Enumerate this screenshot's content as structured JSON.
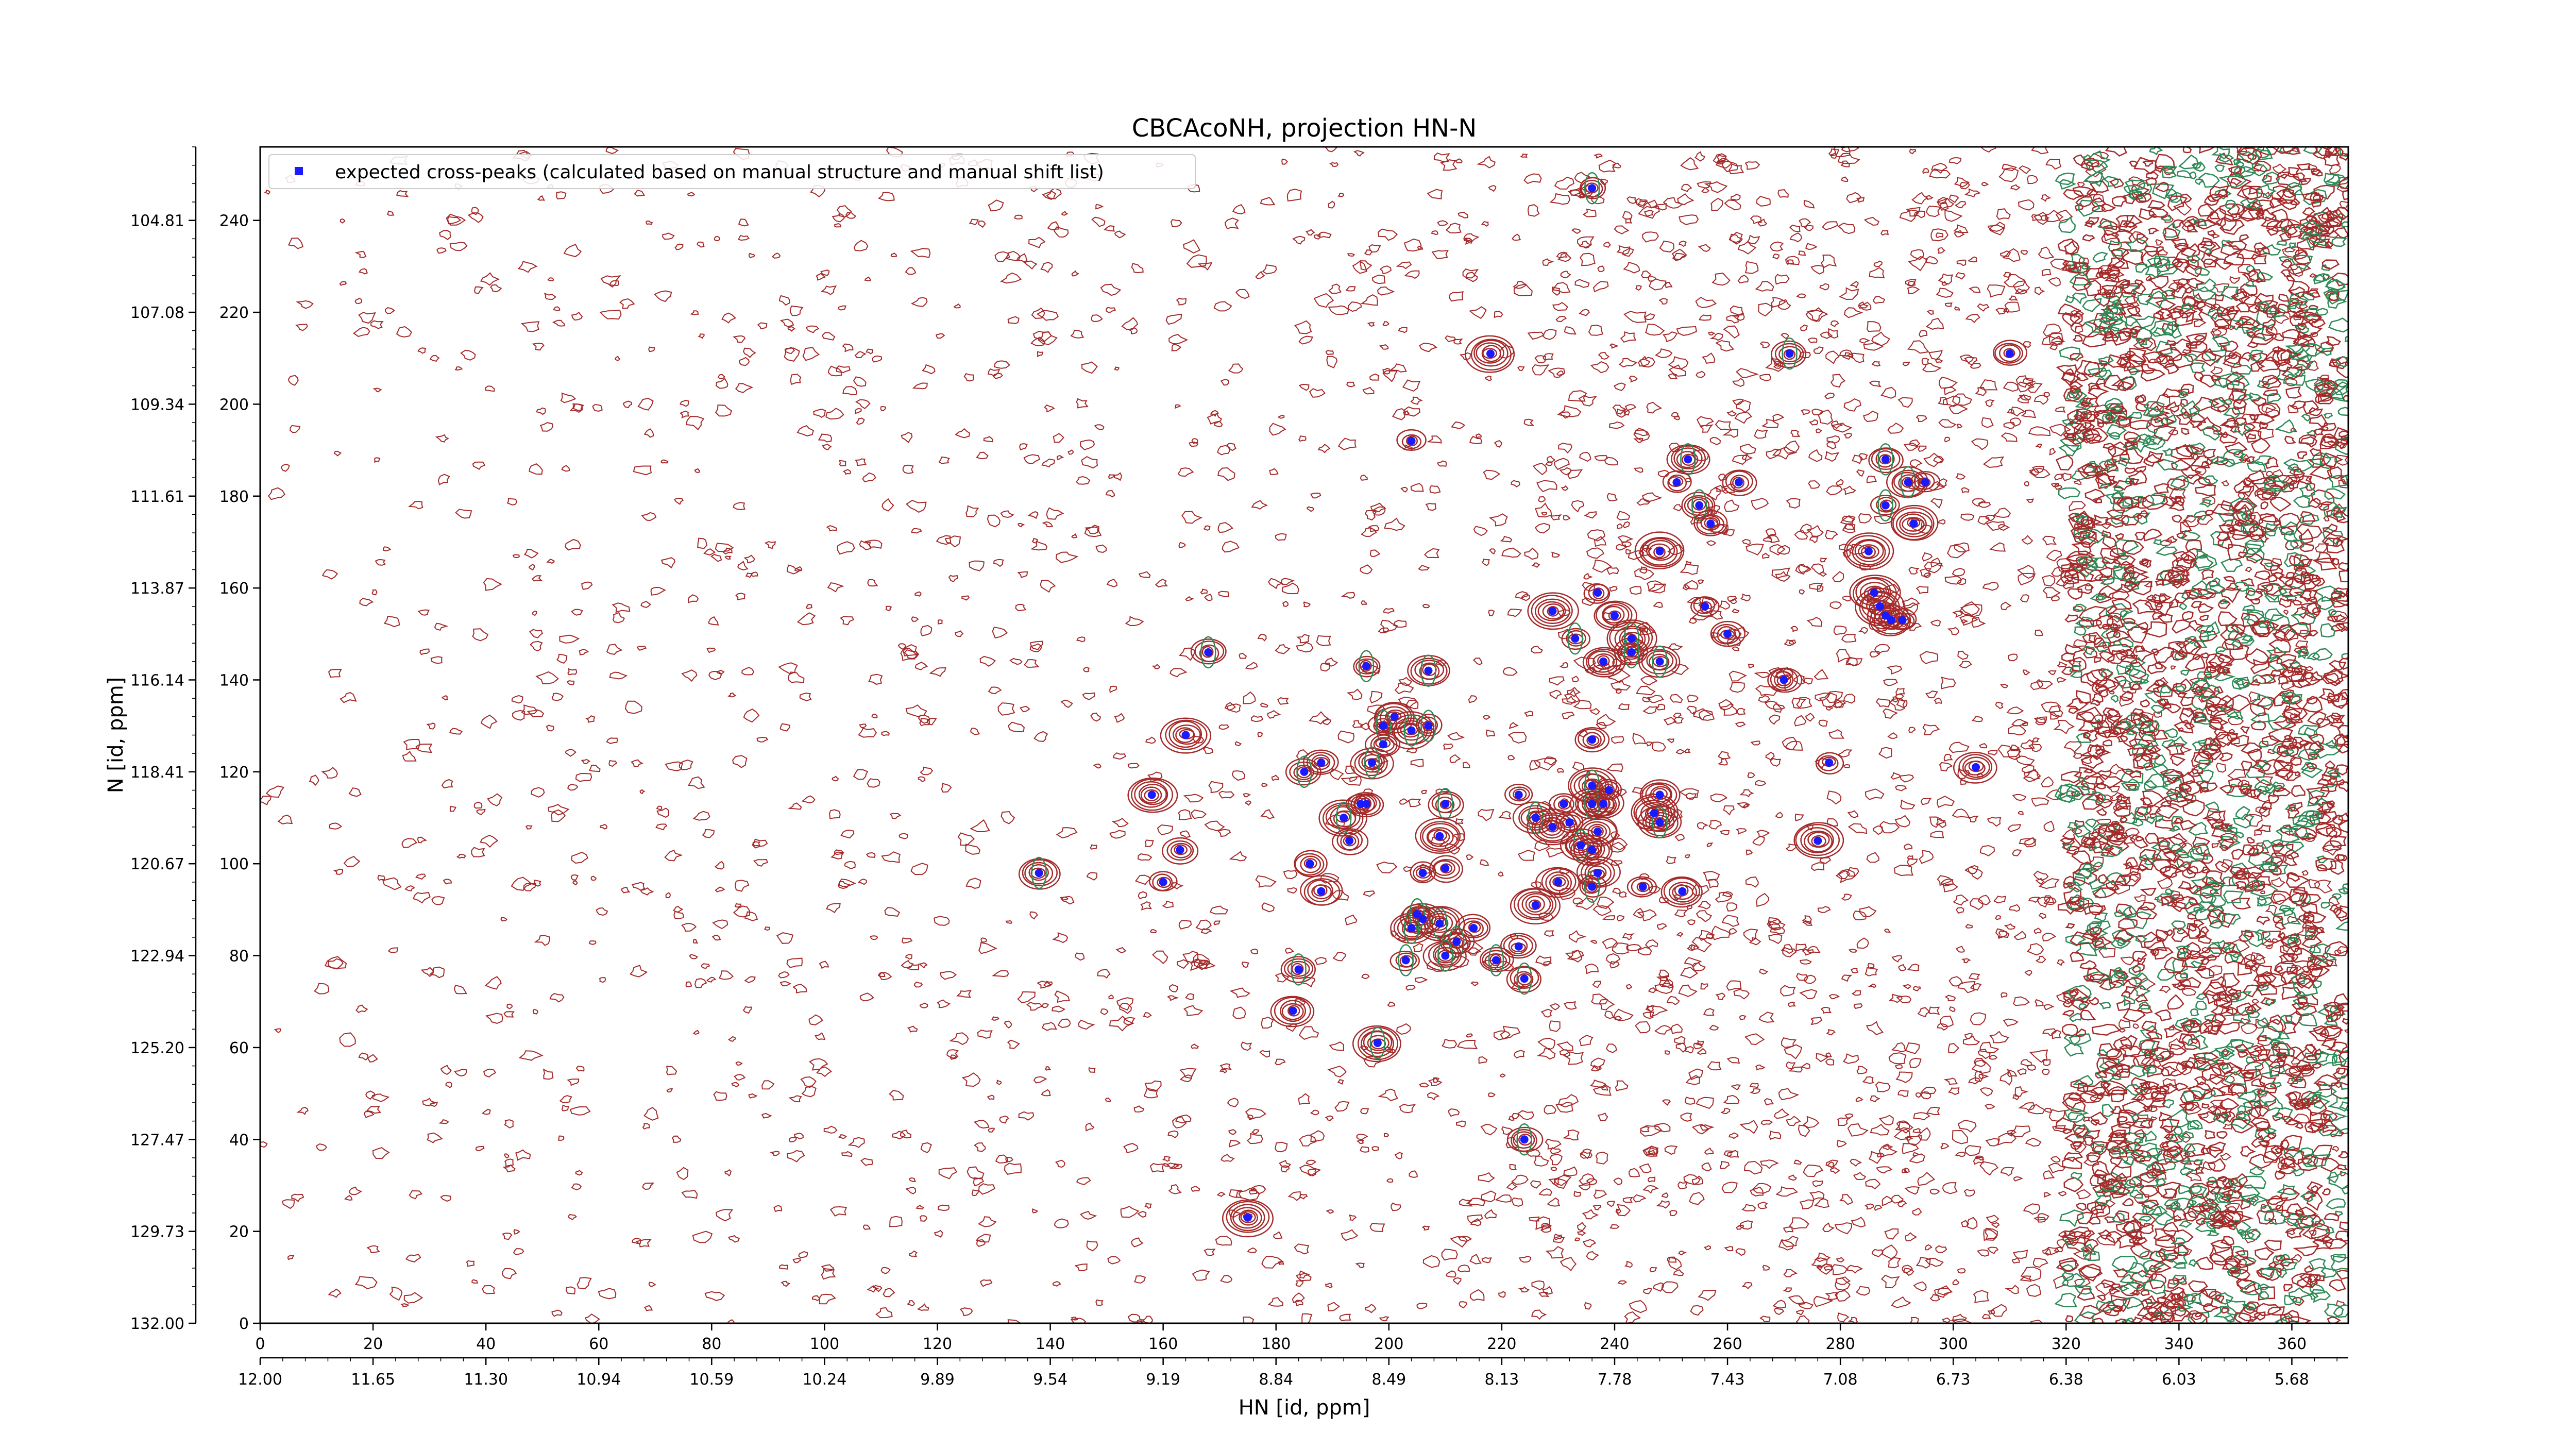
{
  "chart_data": {
    "type": "scatter",
    "title": "CBCAcoNH, projection HN-N",
    "xlabel": "HN [id, ppm]",
    "ylabel": "N [id, ppm]",
    "xlim": [
      0,
      370
    ],
    "ylim": [
      0,
      256
    ],
    "x_ticks": [
      0,
      20,
      40,
      60,
      80,
      100,
      120,
      140,
      160,
      180,
      200,
      220,
      240,
      260,
      280,
      300,
      320,
      340,
      360
    ],
    "y_ticks": [
      0,
      20,
      40,
      60,
      80,
      100,
      120,
      140,
      160,
      180,
      200,
      220,
      240
    ],
    "x_ppm_ticks": [
      "12.00",
      "11.65",
      "11.30",
      "10.94",
      "10.59",
      "10.24",
      "9.89",
      "9.54",
      "9.19",
      "8.84",
      "8.49",
      "8.13",
      "7.78",
      "7.43",
      "7.08",
      "6.73",
      "6.38",
      "6.03",
      "5.68"
    ],
    "y_ppm_ticks": [
      "132.00",
      "129.73",
      "127.47",
      "125.20",
      "122.94",
      "120.67",
      "118.41",
      "116.14",
      "113.87",
      "111.61",
      "109.34",
      "107.08",
      "104.81"
    ],
    "legend": {
      "location": "upper-left",
      "entries": [
        "expected cross-peaks (calculated based on manual structure and manual shift list)"
      ]
    },
    "colors": {
      "peaks": "#1a1aff",
      "contour_pos": "#a52a2a",
      "contour_neg": "#2e8b57"
    },
    "series": [
      {
        "name": "expected cross-peaks (calculated based on manual structure and manual shift list)",
        "points": [
          [
            236,
            247
          ],
          [
            218,
            211
          ],
          [
            271,
            211
          ],
          [
            310,
            211
          ],
          [
            204,
            192
          ],
          [
            288,
            188
          ],
          [
            253,
            188
          ],
          [
            262,
            183
          ],
          [
            251,
            183
          ],
          [
            292,
            183
          ],
          [
            295,
            183
          ],
          [
            255,
            178
          ],
          [
            288,
            178
          ],
          [
            257,
            174
          ],
          [
            293,
            174
          ],
          [
            248,
            168
          ],
          [
            285,
            168
          ],
          [
            237,
            159
          ],
          [
            286,
            159
          ],
          [
            256,
            156
          ],
          [
            229,
            155
          ],
          [
            287,
            156
          ],
          [
            288,
            154
          ],
          [
            240,
            154
          ],
          [
            289,
            153
          ],
          [
            291,
            153
          ],
          [
            260,
            150
          ],
          [
            243,
            149
          ],
          [
            233,
            149
          ],
          [
            243,
            146
          ],
          [
            168,
            146
          ],
          [
            238,
            144
          ],
          [
            248,
            144
          ],
          [
            196,
            143
          ],
          [
            207,
            142
          ],
          [
            270,
            140
          ],
          [
            201,
            132
          ],
          [
            199,
            130
          ],
          [
            204,
            129
          ],
          [
            207,
            130
          ],
          [
            164,
            128
          ],
          [
            236,
            127
          ],
          [
            199,
            126
          ],
          [
            197,
            122
          ],
          [
            188,
            122
          ],
          [
            185,
            120
          ],
          [
            278,
            122
          ],
          [
            304,
            121
          ],
          [
            236,
            117
          ],
          [
            223,
            115
          ],
          [
            158,
            115
          ],
          [
            239,
            116
          ],
          [
            236,
            113
          ],
          [
            231,
            113
          ],
          [
            238,
            113
          ],
          [
            248,
            115
          ],
          [
            196,
            113
          ],
          [
            195,
            113
          ],
          [
            210,
            113
          ],
          [
            192,
            110
          ],
          [
            226,
            110
          ],
          [
            229,
            108
          ],
          [
            237,
            107
          ],
          [
            247,
            111
          ],
          [
            248,
            109
          ],
          [
            232,
            109
          ],
          [
            209,
            106
          ],
          [
            193,
            105
          ],
          [
            276,
            105
          ],
          [
            234,
            104
          ],
          [
            163,
            103
          ],
          [
            236,
            103
          ],
          [
            186,
            100
          ],
          [
            210,
            99
          ],
          [
            237,
            98
          ],
          [
            206,
            98
          ],
          [
            138,
            98
          ],
          [
            160,
            96
          ],
          [
            236,
            95
          ],
          [
            230,
            96
          ],
          [
            245,
            95
          ],
          [
            252,
            94
          ],
          [
            188,
            94
          ],
          [
            226,
            91
          ],
          [
            209,
            87
          ],
          [
            215,
            86
          ],
          [
            206,
            88
          ],
          [
            204,
            86
          ],
          [
            205,
            89
          ],
          [
            212,
            83
          ],
          [
            223,
            82
          ],
          [
            210,
            80
          ],
          [
            203,
            79
          ],
          [
            219,
            79
          ],
          [
            184,
            77
          ],
          [
            224,
            75
          ],
          [
            183,
            68
          ],
          [
            198,
            61
          ],
          [
            224,
            40
          ],
          [
            175,
            23
          ]
        ]
      }
    ]
  }
}
